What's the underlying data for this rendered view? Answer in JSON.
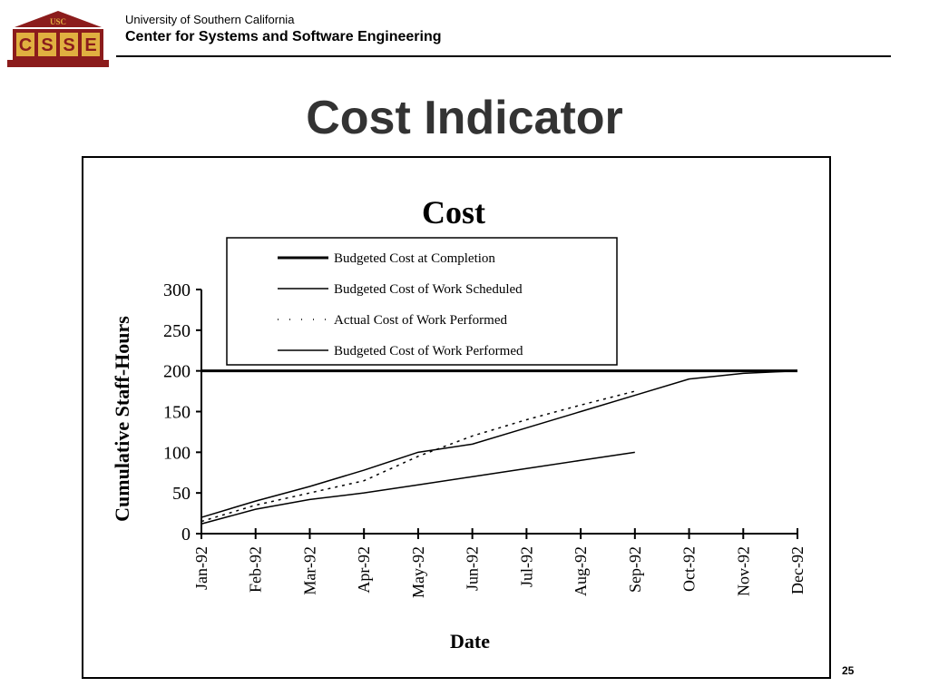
{
  "header": {
    "logo_text_top": "USC",
    "logo_letters": [
      "C",
      "S",
      "S",
      "E"
    ],
    "org": "University of Southern California",
    "department": "Center for Systems and Software Engineering"
  },
  "slide": {
    "title": "Cost Indicator",
    "number": "25"
  },
  "colors": {
    "logo_red": "#8b1c1c",
    "logo_gold": "#e0b040",
    "title_gray": "#333333"
  },
  "chart_data": {
    "type": "line",
    "title": "Cost",
    "xlabel": "Date",
    "ylabel": "Cumulative Staff-Hours",
    "ylim": [
      0,
      300
    ],
    "yticks": [
      0,
      50,
      100,
      150,
      200,
      250,
      300
    ],
    "categories": [
      "Jan-92",
      "Feb-92",
      "Mar-92",
      "Apr-92",
      "May-92",
      "Jun-92",
      "Jul-92",
      "Aug-92",
      "Sep-92",
      "Oct-92",
      "Nov-92",
      "Dec-92"
    ],
    "legend_position": "top",
    "series": [
      {
        "name": "Budgeted Cost at Completion",
        "style": "thick",
        "values": [
          200,
          200,
          200,
          200,
          200,
          200,
          200,
          200,
          200,
          200,
          200,
          200
        ]
      },
      {
        "name": "Budgeted Cost of Work Scheduled",
        "style": "solid",
        "values": [
          20,
          40,
          58,
          78,
          100,
          110,
          130,
          150,
          170,
          190,
          197,
          200
        ]
      },
      {
        "name": "Actual Cost of Work Performed",
        "style": "dotted",
        "values": [
          15,
          35,
          50,
          65,
          95,
          120,
          140,
          158,
          175,
          null,
          null,
          null
        ]
      },
      {
        "name": "Budgeted Cost of Work Performed",
        "style": "solid",
        "values": [
          12,
          30,
          42,
          50,
          60,
          70,
          80,
          90,
          100,
          null,
          null,
          null
        ]
      }
    ]
  }
}
